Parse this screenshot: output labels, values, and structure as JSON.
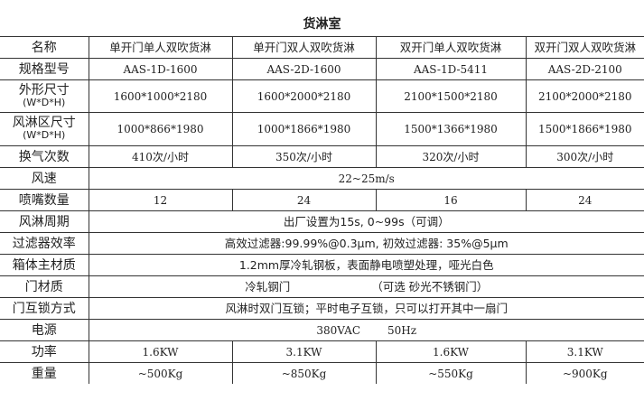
{
  "title": "货淋室",
  "columns": [
    "名称",
    "单开门单人双吹货淋",
    "单开门双人双吹货淋",
    "双开门单人双吹货淋",
    "双开门双人双吹货淋"
  ],
  "rows": {
    "model": {
      "label": "规格型号",
      "values": [
        "AAS-1D-1600",
        "AAS-2D-1600",
        "AAS-1D-5411",
        "AAS-2D-2100"
      ]
    },
    "outer_size": {
      "label": "外形尺寸",
      "sub": "(W*D*H)",
      "values": [
        "1600*1000*2180",
        "1600*2000*2180",
        "2100*1500*2180",
        "2100*2000*2180"
      ]
    },
    "shower_size": {
      "label": "风淋区尺寸",
      "sub": "(W*D*H)",
      "values": [
        "1000*866*1980",
        "1000*1866*1980",
        "1500*1366*1980",
        "1500*1866*1980"
      ]
    },
    "air_changes": {
      "label": "换气次数",
      "values": [
        "410次/小时",
        "350次/小时",
        "320次/小时",
        "300次/小时"
      ]
    },
    "air_speed": {
      "label": "风速",
      "value": "22~25m/s"
    },
    "nozzles": {
      "label": "喷嘴数量",
      "values": [
        "12",
        "24",
        "16",
        "24"
      ]
    },
    "cycle": {
      "label": "风淋周期",
      "value": "出厂设置为15s, 0~99s（可调）"
    },
    "filter": {
      "label": "过滤器效率",
      "value": "高效过滤器:99.99%@0.3μm, 初效过滤器: 35%@5μm"
    },
    "body_material": {
      "label": "箱体主材质",
      "value": "1.2mm厚冷轧钢板，表面静电喷塑处理，哑光白色"
    },
    "door_material": {
      "label": "门材质",
      "value": "冷轧钢门",
      "option": "（可选 砂光不锈钢门）"
    },
    "interlock": {
      "label": "门互锁方式",
      "value": "风淋时双门互锁；平时电子互锁，只可以打开其中一扇门"
    },
    "power_supply": {
      "label": "电源",
      "value": "380VAC",
      "freq": "50Hz"
    },
    "power": {
      "label": "功率",
      "values": [
        "1.6KW",
        "3.1KW",
        "1.6KW",
        "3.1KW"
      ]
    },
    "weight": {
      "label": "重量",
      "values": [
        "~500Kg",
        "~850Kg",
        "~550Kg",
        "~900Kg"
      ]
    }
  }
}
